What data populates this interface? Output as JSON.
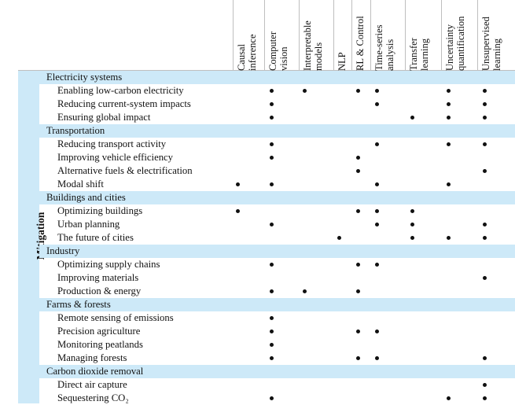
{
  "row_group_label": "Mitigation",
  "columns": [
    {
      "lines": [
        "Causal",
        "inference"
      ]
    },
    {
      "lines": [
        "Computer",
        "vision"
      ]
    },
    {
      "lines": [
        "Interpretable",
        "models"
      ]
    },
    {
      "lines": [
        "NLP"
      ]
    },
    {
      "lines": [
        "RL & Control"
      ]
    },
    {
      "lines": [
        "Time-series",
        "analysis"
      ]
    },
    {
      "lines": [
        "Transfer",
        "learning"
      ]
    },
    {
      "lines": [
        "Uncertainty",
        "quantification"
      ]
    },
    {
      "lines": [
        "Unsupervised",
        "learning"
      ]
    }
  ],
  "sections": [
    {
      "title": "Electricity systems",
      "rows": [
        {
          "label": "Enabling low-carbon electricity",
          "marks": [
            false,
            true,
            true,
            false,
            true,
            true,
            false,
            true,
            true
          ]
        },
        {
          "label": "Reducing current-system impacts",
          "marks": [
            false,
            true,
            false,
            false,
            false,
            true,
            false,
            true,
            true
          ]
        },
        {
          "label": "Ensuring global impact",
          "marks": [
            false,
            true,
            false,
            false,
            false,
            false,
            true,
            true,
            true
          ]
        }
      ]
    },
    {
      "title": "Transportation",
      "rows": [
        {
          "label": "Reducing transport activity",
          "marks": [
            false,
            true,
            false,
            false,
            false,
            true,
            false,
            true,
            true
          ]
        },
        {
          "label": "Improving vehicle efficiency",
          "marks": [
            false,
            true,
            false,
            false,
            true,
            false,
            false,
            false,
            false
          ]
        },
        {
          "label": "Alternative fuels & electrification",
          "marks": [
            false,
            false,
            false,
            false,
            true,
            false,
            false,
            false,
            true
          ]
        },
        {
          "label": "Modal shift",
          "marks": [
            true,
            true,
            false,
            false,
            false,
            true,
            false,
            true,
            false
          ]
        }
      ]
    },
    {
      "title": "Buildings and cities",
      "rows": [
        {
          "label": "Optimizing buildings",
          "marks": [
            true,
            false,
            false,
            false,
            true,
            true,
            true,
            false,
            false
          ]
        },
        {
          "label": "Urban planning",
          "marks": [
            false,
            true,
            false,
            false,
            false,
            true,
            true,
            false,
            true
          ]
        },
        {
          "label": "The future of cities",
          "marks": [
            false,
            false,
            false,
            true,
            false,
            false,
            true,
            true,
            true
          ]
        }
      ]
    },
    {
      "title": "Industry",
      "rows": [
        {
          "label": "Optimizing supply chains",
          "marks": [
            false,
            true,
            false,
            false,
            true,
            true,
            false,
            false,
            false
          ]
        },
        {
          "label": "Improving materials",
          "marks": [
            false,
            false,
            false,
            false,
            false,
            false,
            false,
            false,
            true
          ]
        },
        {
          "label": "Production & energy",
          "marks": [
            false,
            true,
            true,
            false,
            true,
            false,
            false,
            false,
            false
          ]
        }
      ]
    },
    {
      "title": "Farms & forests",
      "rows": [
        {
          "label": "Remote sensing of emissions",
          "marks": [
            false,
            true,
            false,
            false,
            false,
            false,
            false,
            false,
            false
          ]
        },
        {
          "label": "Precision agriculture",
          "marks": [
            false,
            true,
            false,
            false,
            true,
            true,
            false,
            false,
            false
          ]
        },
        {
          "label": "Monitoring peatlands",
          "marks": [
            false,
            true,
            false,
            false,
            false,
            false,
            false,
            false,
            false
          ]
        },
        {
          "label": "Managing forests",
          "marks": [
            false,
            true,
            false,
            false,
            true,
            true,
            false,
            false,
            true
          ]
        }
      ]
    },
    {
      "title": "Carbon dioxide removal",
      "rows": [
        {
          "label": "Direct air capture",
          "marks": [
            false,
            false,
            false,
            false,
            false,
            false,
            false,
            false,
            true
          ]
        },
        {
          "label": "Sequestering CO₂",
          "marks": [
            false,
            true,
            false,
            false,
            false,
            false,
            false,
            true,
            true
          ]
        }
      ]
    }
  ]
}
